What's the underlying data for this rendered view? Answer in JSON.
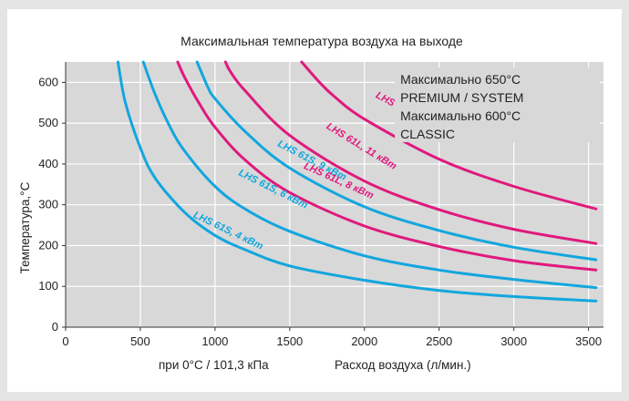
{
  "chart_data": {
    "type": "line",
    "title": "Максимальная температура воздуха на выходе",
    "xlabel_left": "при 0°C / 101,3 кПа",
    "xlabel_right": "Расход воздуха (л/мин.)",
    "ylabel": "Температура,°C",
    "xlim": [
      0,
      3600
    ],
    "ylim": [
      0,
      650
    ],
    "xticks": [
      0,
      500,
      1000,
      1500,
      2000,
      2500,
      3000,
      3500
    ],
    "yticks": [
      0,
      100,
      200,
      300,
      400,
      500,
      600
    ],
    "grid": true,
    "legend": {
      "lines": [
        "Максимально 650°C",
        "PREMIUM / SYSTEM",
        "Максимально 600°C",
        "CLASSIC"
      ],
      "position": "top-right"
    },
    "series": [
      {
        "name": "LHS 61S, 4 кВт",
        "color": "#12a6de",
        "x": [
          350,
          400,
          500,
          600,
          800,
          1000,
          1200,
          1500,
          2000,
          2500,
          3000,
          3550
        ],
        "y": [
          650,
          550,
          440,
          365,
          280,
          225,
          190,
          150,
          115,
          90,
          75,
          64
        ]
      },
      {
        "name": "LHS 61S, 6 кВт",
        "color": "#12a6de",
        "x": [
          520,
          600,
          700,
          800,
          1000,
          1200,
          1500,
          2000,
          2500,
          3000,
          3550
        ],
        "y": [
          650,
          570,
          490,
          430,
          345,
          290,
          235,
          175,
          140,
          117,
          97
        ]
      },
      {
        "name": "LHS 61S, 9 кВт",
        "color": "#12a6de",
        "x": [
          880,
          950,
          1000,
          1200,
          1500,
          2000,
          2500,
          3000,
          3550
        ],
        "y": [
          650,
          590,
          560,
          480,
          390,
          295,
          237,
          196,
          165
        ]
      },
      {
        "name": "LHS 61L, 8 кВт",
        "color": "#e0197d",
        "x": [
          750,
          800,
          900,
          1000,
          1200,
          1500,
          2000,
          2500,
          3000,
          3550
        ],
        "y": [
          650,
          610,
          545,
          490,
          410,
          330,
          248,
          198,
          163,
          140
        ]
      },
      {
        "name": "LHS 61L, 11 кВт",
        "color": "#e0197d",
        "x": [
          1070,
          1100,
          1200,
          1500,
          2000,
          2500,
          3000,
          3550
        ],
        "y": [
          650,
          628,
          580,
          470,
          358,
          288,
          240,
          205
        ]
      },
      {
        "name": "LHS 61L, 16 кВт",
        "color": "#e0197d",
        "x": [
          1580,
          1700,
          1800,
          2000,
          2500,
          3000,
          3550
        ],
        "y": [
          650,
          600,
          565,
          510,
          412,
          345,
          290
        ]
      }
    ]
  }
}
